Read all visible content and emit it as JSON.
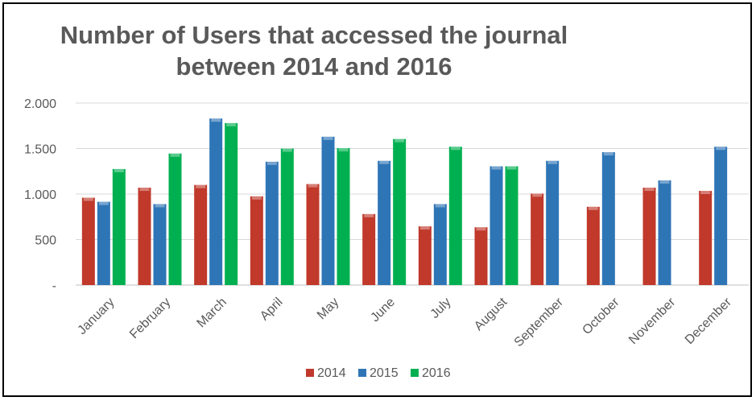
{
  "chart_data": {
    "type": "bar",
    "title_line1": "Number of Users that accessed the journal",
    "title_line2": "between 2014 and 2016",
    "categories": [
      "January",
      "February",
      "March",
      "April",
      "May",
      "June",
      "July",
      "August",
      "September",
      "October",
      "November",
      "December"
    ],
    "series": [
      {
        "name": "2014",
        "color": "#c0392b",
        "values": [
          960,
          1070,
          1100,
          975,
          1110,
          780,
          645,
          635,
          1005,
          860,
          1070,
          1035
        ]
      },
      {
        "name": "2015",
        "color": "#2e75b6",
        "values": [
          915,
          890,
          1830,
          1355,
          1630,
          1365,
          890,
          1305,
          1365,
          1460,
          1150,
          1520
        ]
      },
      {
        "name": "2016",
        "color": "#00b050",
        "values": [
          1275,
          1445,
          1780,
          1500,
          1505,
          1605,
          1520,
          1305,
          null,
          null,
          null,
          null
        ]
      }
    ],
    "yticks": [
      "-",
      "500",
      "1.000",
      "1.500",
      "2.000"
    ],
    "ylim": [
      0,
      2000
    ],
    "grid": true,
    "legend_position": "bottom"
  }
}
